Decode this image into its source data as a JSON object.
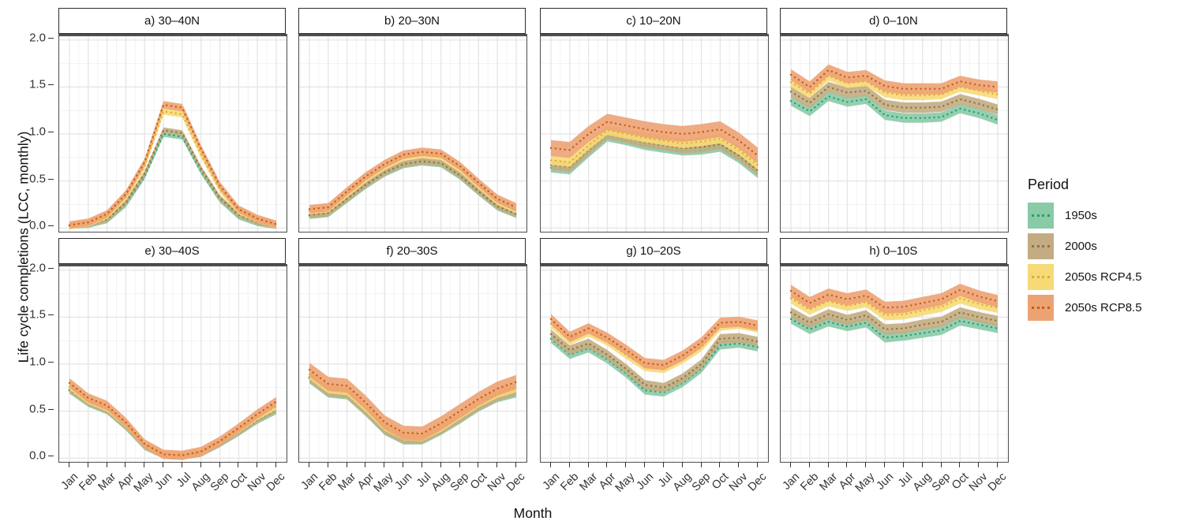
{
  "figure": {
    "xlabel": "Month",
    "ylabel": "Life cycle completions (LCC, monthly)"
  },
  "legend": {
    "title": "Period",
    "items": [
      {
        "label": "1950s",
        "fill": "#89CAA7",
        "line": "#279D73"
      },
      {
        "label": "2000s",
        "fill": "#C3AC83",
        "line": "#8D7837"
      },
      {
        "label": "2050s RCP4.5",
        "fill": "#F6DA78",
        "line": "#E2AE2C"
      },
      {
        "label": "2050s RCP8.5",
        "fill": "#EDA273",
        "line": "#C65F11"
      }
    ]
  },
  "chart_data": {
    "type": "area",
    "x": [
      "Jan",
      "Feb",
      "Mar",
      "Apr",
      "May",
      "Jun",
      "Jul",
      "Aug",
      "Sep",
      "Oct",
      "Nov",
      "Dec"
    ],
    "y_ticks": [
      "0.0",
      "0.5",
      "1.0",
      "1.5",
      "2.0"
    ],
    "ylim": [
      0,
      2
    ],
    "grid": true,
    "legend_position": "right",
    "series_names": [
      "1950s",
      "2000s",
      "2050s RCP4.5",
      "2050s RCP8.5"
    ],
    "colors": {
      "fill": [
        "#89CAA7",
        "#C3AC83",
        "#F6DA78",
        "#EDA273"
      ],
      "line": [
        "#279D73",
        "#8D7837",
        "#E2AE2C",
        "#C65F11"
      ]
    },
    "facets": [
      {
        "title": "a) 30–40N",
        "bands": [
          0.03,
          0.03,
          0.035,
          0.04
        ],
        "series": [
          {
            "name": "1950s",
            "values": [
              0.02,
              0.03,
              0.08,
              0.25,
              0.55,
              1.0,
              0.97,
              0.6,
              0.3,
              0.12,
              0.05,
              0.02
            ]
          },
          {
            "name": "2000s",
            "values": [
              0.02,
              0.04,
              0.09,
              0.27,
              0.58,
              1.04,
              1.01,
              0.63,
              0.32,
              0.14,
              0.06,
              0.02
            ]
          },
          {
            "name": "2050s RCP4.5",
            "values": [
              0.02,
              0.05,
              0.13,
              0.33,
              0.66,
              1.24,
              1.21,
              0.78,
              0.41,
              0.18,
              0.09,
              0.03
            ]
          },
          {
            "name": "2050s RCP8.5",
            "values": [
              0.03,
              0.06,
              0.15,
              0.36,
              0.7,
              1.31,
              1.28,
              0.84,
              0.45,
              0.2,
              0.1,
              0.04
            ]
          }
        ]
      },
      {
        "title": "b) 20–30N",
        "bands": [
          0.035,
          0.035,
          0.035,
          0.045
        ],
        "series": [
          {
            "name": "1950s",
            "values": [
              0.13,
              0.15,
              0.3,
              0.45,
              0.58,
              0.67,
              0.7,
              0.68,
              0.55,
              0.38,
              0.22,
              0.14
            ]
          },
          {
            "name": "2000s",
            "values": [
              0.14,
              0.16,
              0.31,
              0.46,
              0.59,
              0.68,
              0.71,
              0.69,
              0.56,
              0.39,
              0.23,
              0.15
            ]
          },
          {
            "name": "2050s RCP4.5",
            "values": [
              0.18,
              0.2,
              0.36,
              0.52,
              0.65,
              0.75,
              0.78,
              0.76,
              0.63,
              0.45,
              0.28,
              0.19
            ]
          },
          {
            "name": "2050s RCP8.5",
            "values": [
              0.2,
              0.22,
              0.39,
              0.55,
              0.68,
              0.78,
              0.81,
              0.79,
              0.66,
              0.48,
              0.31,
              0.22
            ]
          }
        ]
      },
      {
        "title": "c) 10–20N",
        "bands": [
          0.05,
          0.055,
          0.05,
          0.085
        ],
        "series": [
          {
            "name": "1950s",
            "values": [
              0.64,
              0.62,
              0.8,
              0.97,
              0.93,
              0.88,
              0.85,
              0.82,
              0.83,
              0.86,
              0.74,
              0.58
            ]
          },
          {
            "name": "2000s",
            "values": [
              0.67,
              0.65,
              0.83,
              1.0,
              0.96,
              0.91,
              0.88,
              0.85,
              0.86,
              0.89,
              0.77,
              0.61
            ]
          },
          {
            "name": "2050s RCP4.5",
            "values": [
              0.72,
              0.7,
              0.88,
              1.04,
              1.0,
              0.96,
              0.93,
              0.9,
              0.92,
              0.95,
              0.83,
              0.67
            ]
          },
          {
            "name": "2050s RCP8.5",
            "values": [
              0.85,
              0.83,
              1.0,
              1.13,
              1.09,
              1.05,
              1.02,
              1.0,
              1.02,
              1.05,
              0.93,
              0.77
            ]
          }
        ]
      },
      {
        "title": "d) 0–10N",
        "bands": [
          0.05,
          0.055,
          0.05,
          0.06
        ],
        "series": [
          {
            "name": "1950s",
            "values": [
              1.35,
              1.24,
              1.4,
              1.34,
              1.37,
              1.2,
              1.17,
              1.17,
              1.18,
              1.27,
              1.22,
              1.15
            ]
          },
          {
            "name": "2000s",
            "values": [
              1.45,
              1.33,
              1.5,
              1.44,
              1.46,
              1.31,
              1.28,
              1.28,
              1.29,
              1.37,
              1.32,
              1.26
            ]
          },
          {
            "name": "2050s RCP4.5",
            "values": [
              1.55,
              1.43,
              1.62,
              1.54,
              1.56,
              1.44,
              1.41,
              1.41,
              1.42,
              1.5,
              1.46,
              1.42
            ]
          },
          {
            "name": "2050s RCP8.5",
            "values": [
              1.63,
              1.5,
              1.68,
              1.6,
              1.62,
              1.51,
              1.48,
              1.48,
              1.48,
              1.56,
              1.52,
              1.5
            ]
          }
        ]
      },
      {
        "title": "e) 30–40S",
        "bands": [
          0.035,
          0.035,
          0.035,
          0.05
        ],
        "series": [
          {
            "name": "1950s",
            "values": [
              0.72,
              0.58,
              0.5,
              0.33,
              0.12,
              0.03,
              0.02,
              0.05,
              0.15,
              0.27,
              0.4,
              0.5
            ]
          },
          {
            "name": "2000s",
            "values": [
              0.73,
              0.59,
              0.51,
              0.34,
              0.13,
              0.03,
              0.02,
              0.05,
              0.16,
              0.28,
              0.41,
              0.52
            ]
          },
          {
            "name": "2050s RCP4.5",
            "values": [
              0.76,
              0.61,
              0.53,
              0.36,
              0.14,
              0.04,
              0.03,
              0.06,
              0.17,
              0.3,
              0.44,
              0.55
            ]
          },
          {
            "name": "2050s RCP8.5",
            "values": [
              0.8,
              0.64,
              0.56,
              0.38,
              0.15,
              0.04,
              0.03,
              0.07,
              0.18,
              0.32,
              0.47,
              0.6
            ]
          }
        ]
      },
      {
        "title": "f) 20–30S",
        "bands": [
          0.055,
          0.055,
          0.05,
          0.075
        ],
        "series": [
          {
            "name": "1950s",
            "values": [
              0.85,
              0.7,
              0.68,
              0.5,
              0.3,
              0.2,
              0.2,
              0.3,
              0.42,
              0.55,
              0.65,
              0.7
            ]
          },
          {
            "name": "2000s",
            "values": [
              0.86,
              0.71,
              0.69,
              0.51,
              0.31,
              0.21,
              0.21,
              0.31,
              0.43,
              0.56,
              0.66,
              0.72
            ]
          },
          {
            "name": "2050s RCP4.5",
            "values": [
              0.89,
              0.74,
              0.72,
              0.54,
              0.34,
              0.24,
              0.23,
              0.33,
              0.46,
              0.59,
              0.69,
              0.75
            ]
          },
          {
            "name": "2050s RCP8.5",
            "values": [
              0.94,
              0.79,
              0.77,
              0.59,
              0.38,
              0.27,
              0.26,
              0.37,
              0.5,
              0.63,
              0.74,
              0.81
            ]
          }
        ]
      },
      {
        "title": "g) 10–20S",
        "bands": [
          0.045,
          0.05,
          0.045,
          0.055
        ],
        "series": [
          {
            "name": "1950s",
            "values": [
              1.27,
              1.1,
              1.17,
              1.05,
              0.9,
              0.72,
              0.7,
              0.8,
              0.95,
              1.2,
              1.22,
              1.18
            ]
          },
          {
            "name": "2000s",
            "values": [
              1.32,
              1.15,
              1.22,
              1.1,
              0.95,
              0.78,
              0.75,
              0.85,
              1.0,
              1.27,
              1.28,
              1.24
            ]
          },
          {
            "name": "2050s RCP4.5",
            "values": [
              1.43,
              1.25,
              1.34,
              1.24,
              1.1,
              0.97,
              0.95,
              1.05,
              1.18,
              1.4,
              1.42,
              1.38
            ]
          },
          {
            "name": "2050s RCP8.5",
            "values": [
              1.48,
              1.29,
              1.38,
              1.28,
              1.15,
              1.01,
              0.99,
              1.09,
              1.23,
              1.44,
              1.45,
              1.41
            ]
          }
        ]
      },
      {
        "title": "h) 0–10S",
        "bands": [
          0.05,
          0.055,
          0.055,
          0.065
        ],
        "series": [
          {
            "name": "1950s",
            "values": [
              1.48,
              1.37,
              1.45,
              1.4,
              1.44,
              1.28,
              1.3,
              1.33,
              1.36,
              1.46,
              1.42,
              1.38
            ]
          },
          {
            "name": "2000s",
            "values": [
              1.55,
              1.44,
              1.53,
              1.47,
              1.52,
              1.37,
              1.38,
              1.42,
              1.45,
              1.55,
              1.5,
              1.46
            ]
          },
          {
            "name": "2050s RCP4.5",
            "values": [
              1.7,
              1.58,
              1.67,
              1.62,
              1.66,
              1.52,
              1.53,
              1.57,
              1.61,
              1.7,
              1.64,
              1.6
            ]
          },
          {
            "name": "2050s RCP8.5",
            "values": [
              1.78,
              1.65,
              1.74,
              1.69,
              1.73,
              1.6,
              1.61,
              1.65,
              1.69,
              1.79,
              1.72,
              1.67
            ]
          }
        ]
      }
    ]
  }
}
